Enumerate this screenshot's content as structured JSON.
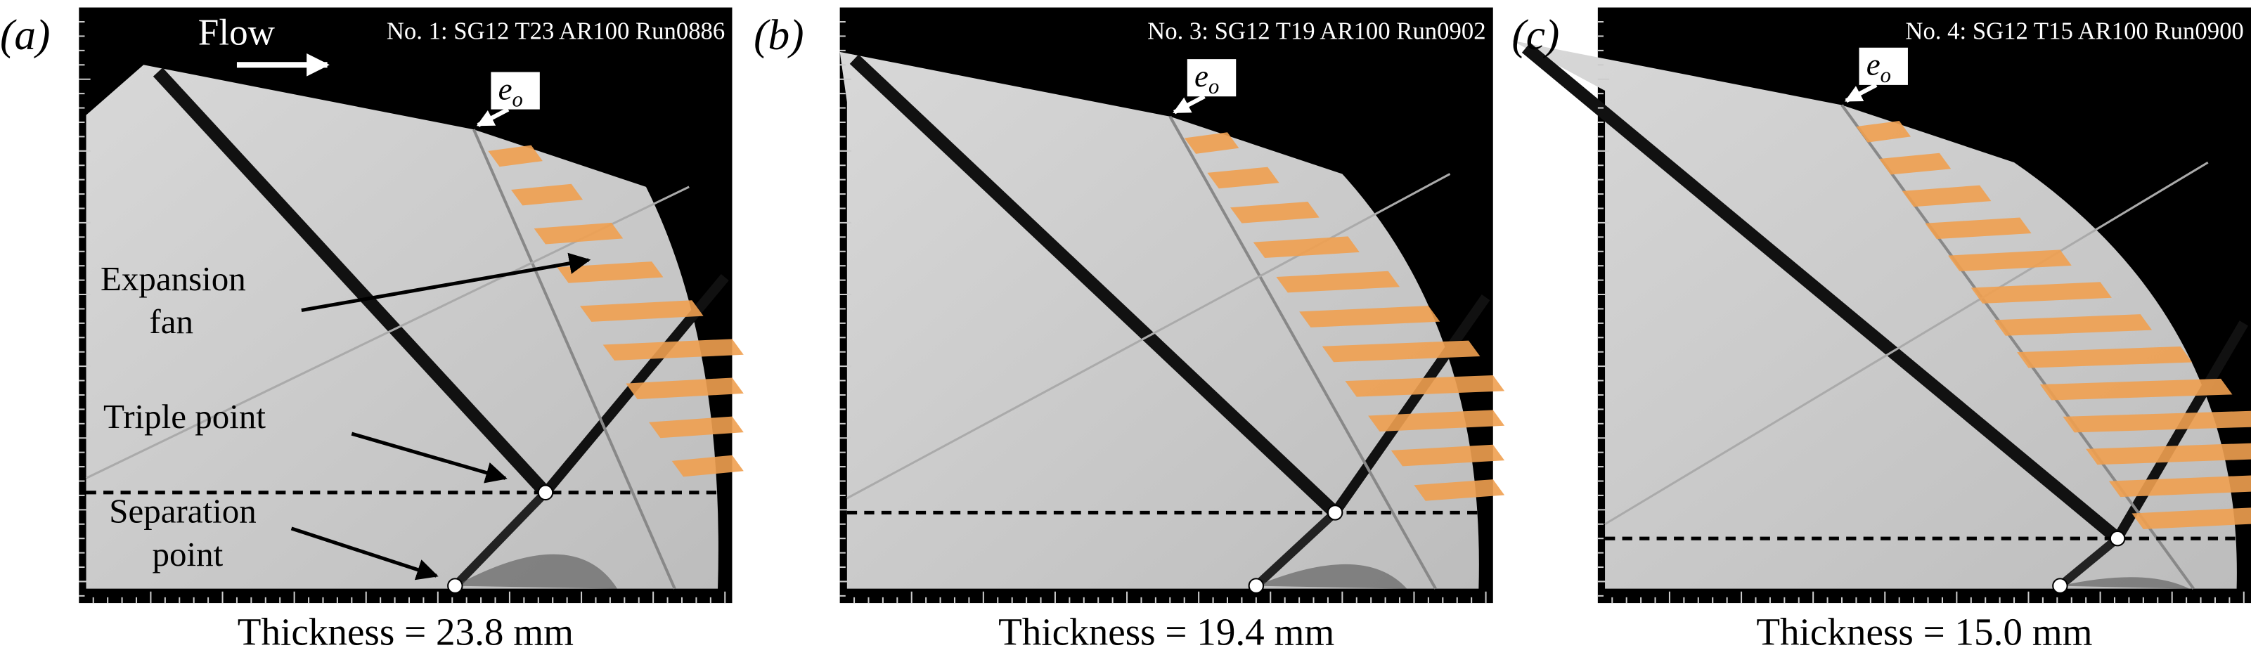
{
  "panels": [
    {
      "label": "(a)",
      "title": "No. 1: SG12 T23 AR100 Run0886",
      "marker": {
        "base": "e",
        "sub": "o"
      },
      "caption": "Thickness = 23.8 mm"
    },
    {
      "label": "(b)",
      "title": "No. 3: SG12 T19 AR100 Run0902",
      "marker": {
        "base": "e",
        "sub": "o"
      },
      "caption": "Thickness = 19.4 mm"
    },
    {
      "label": "(c)",
      "title": "No. 4: SG12 T15 AR100 Run0900",
      "marker": {
        "base": "e",
        "sub": "o"
      },
      "caption": "Thickness = 15.0 mm"
    }
  ],
  "flow_label": "Flow",
  "annotations": {
    "expansion_fan": [
      "Expansion",
      "fan"
    ],
    "triple_point": "Triple point",
    "separation_point": [
      "Separation",
      "point"
    ]
  }
}
